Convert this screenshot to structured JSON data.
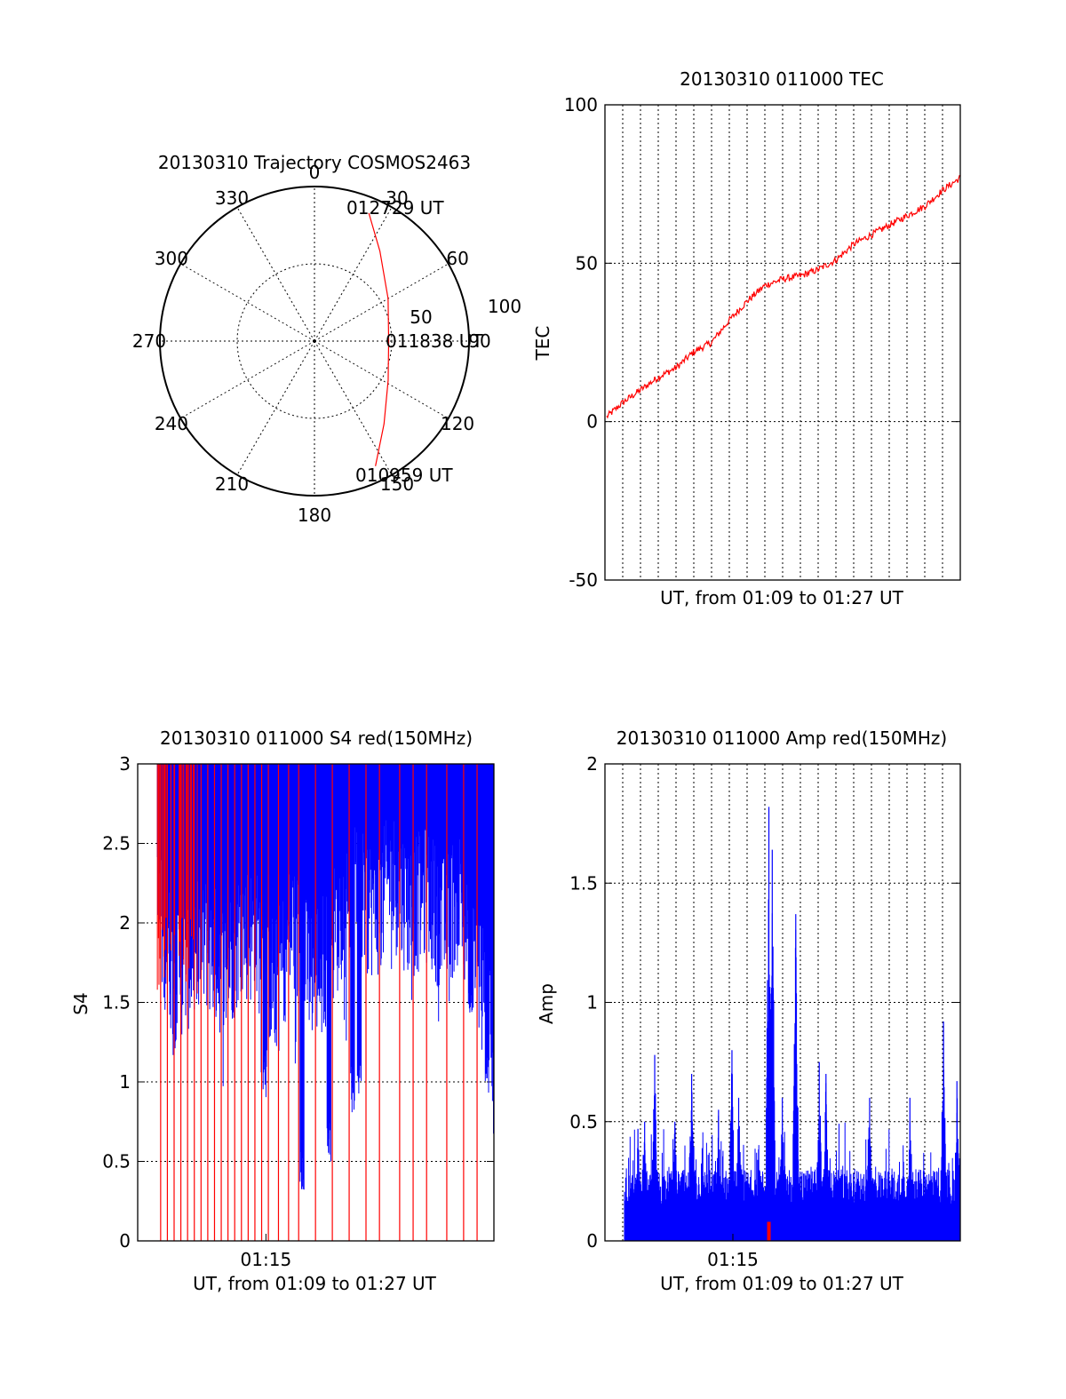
{
  "colors": {
    "red": "#ff0000",
    "blue": "#0000ff",
    "axis": "#000000",
    "background": "#ffffff"
  },
  "chart_data": [
    {
      "id": "trajectory",
      "type": "polar",
      "title": "20130310 Trajectory COSMOS2463",
      "angle_labels": [
        "0",
        "30",
        "60",
        "90",
        "120",
        "150",
        "180",
        "210",
        "240",
        "270",
        "300",
        "330"
      ],
      "radius_labels": [
        "50",
        "100"
      ],
      "rlim": [
        0,
        100
      ],
      "path_azimuth_elevation": [
        {
          "az": 23,
          "el": 10
        },
        {
          "az": 36,
          "el": 28
        },
        {
          "az": 60,
          "el": 45
        },
        {
          "az": 90,
          "el": 52
        },
        {
          "az": 118,
          "el": 46
        },
        {
          "az": 140,
          "el": 30
        },
        {
          "az": 154,
          "el": 10
        }
      ],
      "annotations": [
        "012729 UT",
        "011838 UT",
        "010959 UT"
      ]
    },
    {
      "id": "tec",
      "type": "line",
      "title": "20130310 011000 TEC",
      "xlabel": "UT, from 01:09 to 01:27 UT",
      "ylabel": "TEC",
      "ylim": [
        -50,
        100
      ],
      "yticks": [
        "-50",
        "0",
        "50",
        "100"
      ],
      "xlim": [
        0,
        1
      ],
      "grid_lines_x": 19,
      "series": [
        {
          "name": "TEC",
          "color": "red",
          "points": [
            [
              0.0,
              1
            ],
            [
              0.05,
              6
            ],
            [
              0.1,
              10
            ],
            [
              0.15,
              14
            ],
            [
              0.2,
              17
            ],
            [
              0.25,
              22
            ],
            [
              0.3,
              25
            ],
            [
              0.35,
              32
            ],
            [
              0.4,
              38
            ],
            [
              0.45,
              43
            ],
            [
              0.5,
              45
            ],
            [
              0.55,
              46
            ],
            [
              0.6,
              48
            ],
            [
              0.65,
              51
            ],
            [
              0.7,
              56
            ],
            [
              0.75,
              59
            ],
            [
              0.8,
              62
            ],
            [
              0.85,
              65
            ],
            [
              0.9,
              68
            ],
            [
              0.95,
              73
            ],
            [
              1.0,
              77
            ]
          ]
        }
      ]
    },
    {
      "id": "s4",
      "type": "bar",
      "title": "20130310 011000 S4 red(150MHz)",
      "xlabel": "UT, from 01:09 to 01:27 UT",
      "ylabel": "S4",
      "ylim": [
        0,
        3
      ],
      "yticks": [
        "0",
        "0.5",
        "1",
        "1.5",
        "2",
        "2.5",
        "3"
      ],
      "xticks": [
        "01:15"
      ],
      "blue_envelope": [
        [
          0.0,
          1.9
        ],
        [
          0.05,
          1.5
        ],
        [
          0.1,
          1.6
        ],
        [
          0.15,
          1.7
        ],
        [
          0.2,
          1.5
        ],
        [
          0.25,
          1.8
        ],
        [
          0.3,
          1.7
        ],
        [
          0.35,
          1.4
        ],
        [
          0.4,
          1.8
        ],
        [
          0.45,
          1.5
        ],
        [
          0.5,
          1.6
        ],
        [
          0.55,
          1.9
        ],
        [
          0.6,
          2.0
        ],
        [
          0.65,
          1.9
        ],
        [
          0.7,
          2.1
        ],
        [
          0.75,
          1.9
        ],
        [
          0.8,
          2.0
        ],
        [
          0.85,
          1.8
        ],
        [
          0.9,
          2.0
        ],
        [
          0.95,
          1.6
        ],
        [
          1.0,
          0.9
        ]
      ],
      "blue_dips": [
        [
          0.32,
          0.9
        ],
        [
          0.43,
          0.3
        ],
        [
          0.51,
          0.5
        ],
        [
          0.58,
          0.8
        ],
        [
          0.6,
          0.9
        ],
        [
          0.93,
          1.3
        ],
        [
          0.98,
          0.9
        ]
      ],
      "red_spikes_x": [
        0.01,
        0.03,
        0.05,
        0.07,
        0.09,
        0.11,
        0.13,
        0.15,
        0.17,
        0.19,
        0.21,
        0.23,
        0.25,
        0.27,
        0.29,
        0.31,
        0.33,
        0.36,
        0.39,
        0.42,
        0.47,
        0.52,
        0.57,
        0.62,
        0.66,
        0.72,
        0.76,
        0.8,
        0.86,
        0.91,
        0.95
      ]
    },
    {
      "id": "amp",
      "type": "bar",
      "title": "20130310 011000 Amp red(150MHz)",
      "xlabel": "UT, from 01:09 to 01:27 UT",
      "ylabel": "Amp",
      "ylim": [
        0,
        2
      ],
      "yticks": [
        "0",
        "0.5",
        "1",
        "1.5",
        "2"
      ],
      "xticks": [
        "01:15"
      ],
      "noise_floor": [
        0.15,
        0.3
      ],
      "peaks": [
        [
          0.04,
          0.47
        ],
        [
          0.06,
          0.5
        ],
        [
          0.09,
          0.78
        ],
        [
          0.15,
          0.5
        ],
        [
          0.2,
          0.7
        ],
        [
          0.28,
          0.55
        ],
        [
          0.32,
          0.8
        ],
        [
          0.34,
          0.6
        ],
        [
          0.43,
          1.82
        ],
        [
          0.44,
          1.64
        ],
        [
          0.47,
          0.6
        ],
        [
          0.51,
          1.37
        ],
        [
          0.58,
          0.75
        ],
        [
          0.6,
          0.7
        ],
        [
          0.73,
          0.6
        ],
        [
          0.85,
          0.6
        ],
        [
          0.95,
          0.92
        ],
        [
          0.99,
          0.67
        ]
      ],
      "red_marker": {
        "x": 0.43,
        "value": 0.08
      }
    }
  ]
}
